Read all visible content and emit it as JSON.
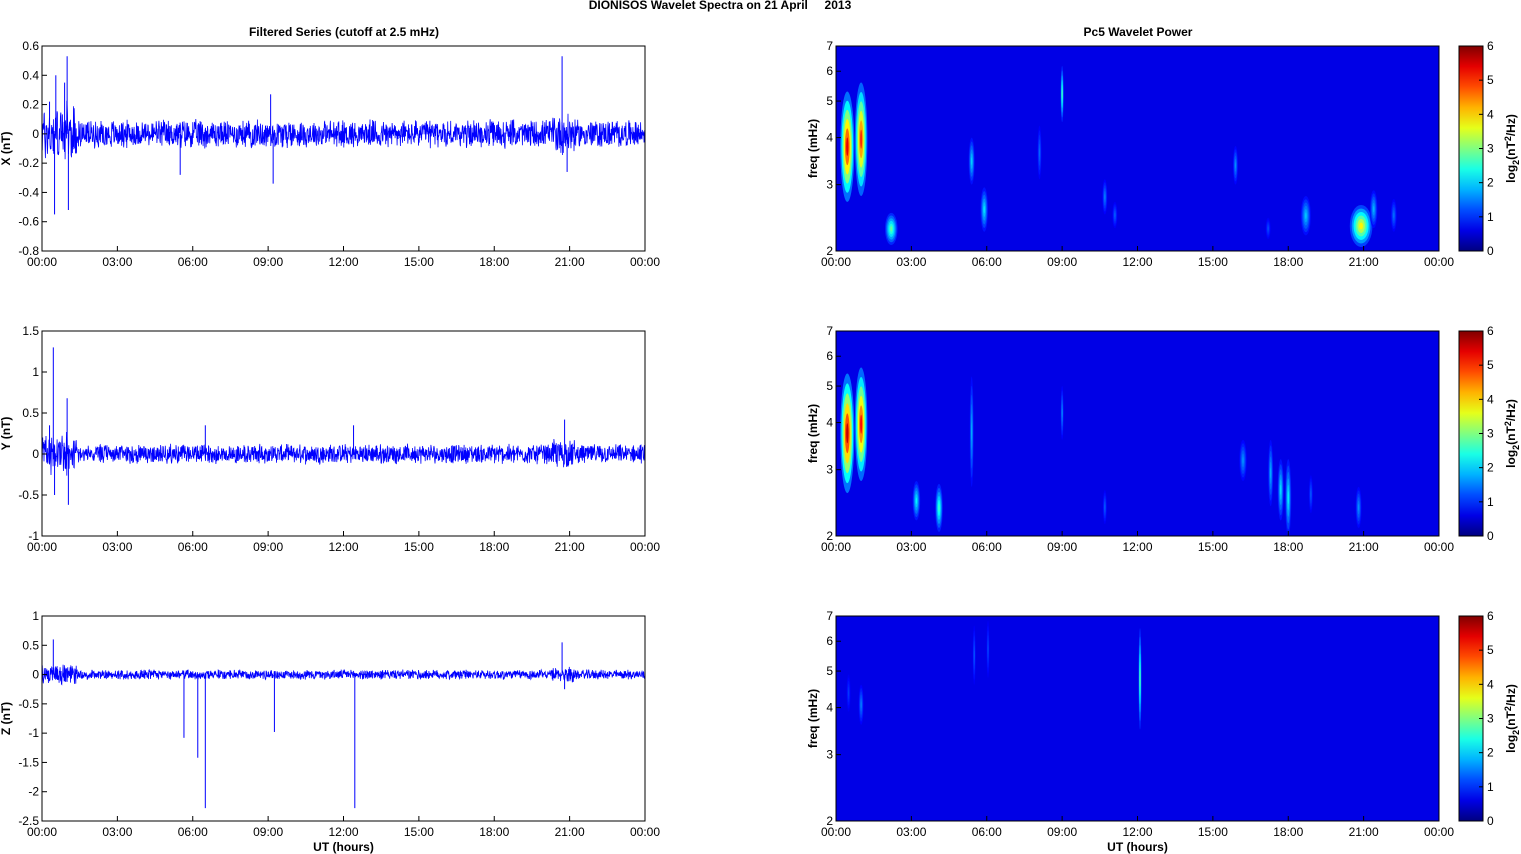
{
  "figure": {
    "title": "DIONISOS Wavelet Spectra on 21 April     2013",
    "left_title": "Filtered Series (cutoff at 2.5 mHz)",
    "right_title": "Pc5 Wavelet Power",
    "xlabel": "UT (hours)"
  },
  "chart_data": [
    {
      "type": "line",
      "title": "Filtered Series (cutoff at 2.5 mHz)",
      "ylabel": "X (nT)",
      "xlabel": "",
      "xlim": [
        0,
        24
      ],
      "xticks": [
        "00:00",
        "03:00",
        "06:00",
        "09:00",
        "12:00",
        "15:00",
        "18:00",
        "21:00",
        "00:00"
      ],
      "ylim": [
        -0.8,
        0.6
      ],
      "yticks": [
        "-0.8",
        "-0.6",
        "-0.4",
        "-0.2",
        "0",
        "0.2",
        "0.4",
        "0.6"
      ],
      "color": "#0000ff",
      "background_amplitude": 0.08,
      "series_events": [
        {
          "x": 0.3,
          "y": 0.22
        },
        {
          "x": 0.5,
          "y": -0.55
        },
        {
          "x": 0.55,
          "y": 0.4
        },
        {
          "x": 0.9,
          "y": 0.35
        },
        {
          "x": 1.0,
          "y": 0.53
        },
        {
          "x": 1.05,
          "y": -0.52
        },
        {
          "x": 5.5,
          "y": -0.28
        },
        {
          "x": 9.2,
          "y": -0.34
        },
        {
          "x": 9.1,
          "y": 0.27
        },
        {
          "x": 20.7,
          "y": 0.53
        },
        {
          "x": 20.9,
          "y": -0.26
        }
      ]
    },
    {
      "type": "line",
      "ylabel": "Y (nT)",
      "xlabel": "",
      "xlim": [
        0,
        24
      ],
      "xticks": [
        "00:00",
        "03:00",
        "06:00",
        "09:00",
        "12:00",
        "15:00",
        "18:00",
        "21:00",
        "00:00"
      ],
      "ylim": [
        -1,
        1.5
      ],
      "yticks": [
        "-1",
        "-0.5",
        "0",
        "0.5",
        "1",
        "1.5"
      ],
      "color": "#0000ff",
      "background_amplitude": 0.1,
      "series_events": [
        {
          "x": 0.3,
          "y": 0.35
        },
        {
          "x": 0.45,
          "y": 1.3
        },
        {
          "x": 0.5,
          "y": -0.5
        },
        {
          "x": 1.0,
          "y": 0.68
        },
        {
          "x": 1.05,
          "y": -0.62
        },
        {
          "x": 6.5,
          "y": 0.35
        },
        {
          "x": 12.4,
          "y": 0.35
        },
        {
          "x": 20.8,
          "y": 0.42
        }
      ]
    },
    {
      "type": "line",
      "ylabel": "Z (nT)",
      "xlabel": "UT (hours)",
      "xlim": [
        0,
        24
      ],
      "xticks": [
        "00:00",
        "03:00",
        "06:00",
        "09:00",
        "12:00",
        "15:00",
        "18:00",
        "21:00",
        "00:00"
      ],
      "ylim": [
        -2.5,
        1
      ],
      "yticks": [
        "-2.5",
        "-2",
        "-1.5",
        "-1",
        "-0.5",
        "0",
        "0.5",
        "1"
      ],
      "color": "#0000ff",
      "background_amplitude": 0.07,
      "series_events": [
        {
          "x": 0.45,
          "y": 0.6
        },
        {
          "x": 5.65,
          "y": -1.08
        },
        {
          "x": 6.2,
          "y": -1.42
        },
        {
          "x": 6.5,
          "y": -2.28
        },
        {
          "x": 9.25,
          "y": -0.98
        },
        {
          "x": 12.45,
          "y": -2.28
        },
        {
          "x": 20.7,
          "y": 0.55
        },
        {
          "x": 20.8,
          "y": -0.25
        }
      ]
    },
    {
      "type": "heatmap",
      "title": "Pc5 Wavelet Power",
      "ylabel": "freq (mHz)",
      "xlabel": "",
      "xlim": [
        0,
        24
      ],
      "xticks": [
        "00:00",
        "03:00",
        "06:00",
        "09:00",
        "12:00",
        "15:00",
        "18:00",
        "21:00",
        "00:00"
      ],
      "ylim": [
        2,
        7
      ],
      "yscale": "log",
      "yticks": [
        "2",
        "3",
        "4",
        "5",
        "6",
        "7"
      ],
      "colorbar": {
        "label": "log2(nT2/Hz)",
        "range": [
          0,
          6
        ],
        "ticks": [
          "0",
          "1",
          "2",
          "3",
          "4",
          "5",
          "6"
        ],
        "colormap": "jet"
      },
      "blobs": [
        {
          "t": 0.45,
          "f": 4.0,
          "power": 4.8,
          "dt": 0.28,
          "fspan": 2.6
        },
        {
          "t": 1.0,
          "f": 4.2,
          "power": 4.4,
          "dt": 0.25,
          "fspan": 2.8
        },
        {
          "t": 2.2,
          "f": 2.3,
          "power": 2.2,
          "dt": 0.25,
          "fspan": 0.45
        },
        {
          "t": 5.4,
          "f": 3.5,
          "power": 1.4,
          "dt": 0.12,
          "fspan": 1.0
        },
        {
          "t": 5.9,
          "f": 2.6,
          "power": 1.5,
          "dt": 0.15,
          "fspan": 0.7
        },
        {
          "t": 9.0,
          "f": 5.3,
          "power": 2.2,
          "dt": 0.06,
          "fspan": 1.8
        },
        {
          "t": 8.1,
          "f": 3.7,
          "power": 0.8,
          "dt": 0.08,
          "fspan": 1.2
        },
        {
          "t": 10.7,
          "f": 2.8,
          "power": 0.9,
          "dt": 0.1,
          "fspan": 0.6
        },
        {
          "t": 11.1,
          "f": 2.5,
          "power": 0.7,
          "dt": 0.1,
          "fspan": 0.4
        },
        {
          "t": 15.9,
          "f": 3.4,
          "power": 1.0,
          "dt": 0.1,
          "fspan": 0.8
        },
        {
          "t": 17.2,
          "f": 2.3,
          "power": 0.6,
          "dt": 0.1,
          "fspan": 0.3
        },
        {
          "t": 18.7,
          "f": 2.5,
          "power": 1.3,
          "dt": 0.2,
          "fspan": 0.6
        },
        {
          "t": 20.9,
          "f": 2.35,
          "power": 3.2,
          "dt": 0.45,
          "fspan": 0.6
        },
        {
          "t": 21.4,
          "f": 2.6,
          "power": 1.2,
          "dt": 0.15,
          "fspan": 0.6
        },
        {
          "t": 22.2,
          "f": 2.5,
          "power": 0.8,
          "dt": 0.12,
          "fspan": 0.5
        }
      ]
    },
    {
      "type": "heatmap",
      "ylabel": "freq (mHz)",
      "xlabel": "",
      "xlim": [
        0,
        24
      ],
      "xticks": [
        "00:00",
        "03:00",
        "06:00",
        "09:00",
        "12:00",
        "15:00",
        "18:00",
        "21:00",
        "00:00"
      ],
      "ylim": [
        2,
        7
      ],
      "yscale": "log",
      "yticks": [
        "2",
        "3",
        "4",
        "5",
        "6",
        "7"
      ],
      "colorbar": {
        "label": "log2(nT2/Hz)",
        "range": [
          0,
          6
        ],
        "ticks": [
          "0",
          "1",
          "2",
          "3",
          "4",
          "5",
          "6"
        ],
        "colormap": "jet"
      },
      "blobs": [
        {
          "t": 0.45,
          "f": 4.0,
          "power": 5.0,
          "dt": 0.28,
          "fspan": 2.8
        },
        {
          "t": 1.0,
          "f": 4.2,
          "power": 4.6,
          "dt": 0.25,
          "fspan": 2.8
        },
        {
          "t": 3.2,
          "f": 2.5,
          "power": 1.6,
          "dt": 0.15,
          "fspan": 0.6
        },
        {
          "t": 4.1,
          "f": 2.4,
          "power": 2.0,
          "dt": 0.15,
          "fspan": 0.7
        },
        {
          "t": 5.4,
          "f": 4.0,
          "power": 1.2,
          "dt": 0.08,
          "fspan": 2.6
        },
        {
          "t": 9.0,
          "f": 4.3,
          "power": 1.0,
          "dt": 0.05,
          "fspan": 1.4
        },
        {
          "t": 10.7,
          "f": 2.4,
          "power": 0.7,
          "dt": 0.08,
          "fspan": 0.5
        },
        {
          "t": 16.2,
          "f": 3.2,
          "power": 1.0,
          "dt": 0.15,
          "fspan": 0.8
        },
        {
          "t": 17.3,
          "f": 3.0,
          "power": 1.2,
          "dt": 0.1,
          "fspan": 1.2
        },
        {
          "t": 17.7,
          "f": 2.7,
          "power": 1.5,
          "dt": 0.12,
          "fspan": 1.0
        },
        {
          "t": 18.0,
          "f": 2.6,
          "power": 1.6,
          "dt": 0.12,
          "fspan": 1.2
        },
        {
          "t": 18.9,
          "f": 2.6,
          "power": 0.7,
          "dt": 0.08,
          "fspan": 0.6
        },
        {
          "t": 20.8,
          "f": 2.4,
          "power": 1.0,
          "dt": 0.12,
          "fspan": 0.6
        }
      ]
    },
    {
      "type": "heatmap",
      "ylabel": "freq (mHz)",
      "xlabel": "UT (hours)",
      "xlim": [
        0,
        24
      ],
      "xticks": [
        "00:00",
        "03:00",
        "06:00",
        "09:00",
        "12:00",
        "15:00",
        "18:00",
        "21:00",
        "00:00"
      ],
      "ylim": [
        2,
        7
      ],
      "yscale": "log",
      "yticks": [
        "2",
        "3",
        "4",
        "5",
        "6",
        "7"
      ],
      "colorbar": {
        "label": "log2(nT2/Hz)",
        "range": [
          0,
          6
        ],
        "ticks": [
          "0",
          "1",
          "2",
          "3",
          "4",
          "5",
          "6"
        ],
        "colormap": "jet"
      },
      "blobs": [
        {
          "t": 0.5,
          "f": 4.4,
          "power": 0.5,
          "dt": 0.08,
          "fspan": 1.0
        },
        {
          "t": 1.0,
          "f": 4.1,
          "power": 0.9,
          "dt": 0.1,
          "fspan": 1.0
        },
        {
          "t": 5.5,
          "f": 5.6,
          "power": 0.7,
          "dt": 0.04,
          "fspan": 2.0
        },
        {
          "t": 6.05,
          "f": 5.8,
          "power": 0.6,
          "dt": 0.04,
          "fspan": 2.0
        },
        {
          "t": 12.1,
          "f": 5.0,
          "power": 2.3,
          "dt": 0.04,
          "fspan": 3.0
        }
      ]
    }
  ]
}
